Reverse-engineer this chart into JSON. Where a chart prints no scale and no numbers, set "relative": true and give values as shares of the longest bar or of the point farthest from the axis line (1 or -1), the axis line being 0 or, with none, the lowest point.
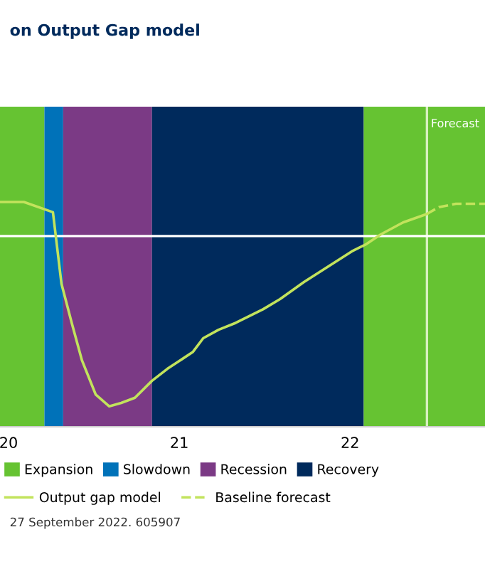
{
  "chart_data": {
    "type": "line",
    "title": "on Output Gap model",
    "relative": true,
    "xlim": [
      19.95,
      22.79
    ],
    "xticks": [
      20,
      21,
      22
    ],
    "series": [
      {
        "name": "Output gap model",
        "color": "#c2e35c",
        "line_style": "solid",
        "x": [
          19.95,
          20.09,
          20.26,
          20.31,
          20.37,
          20.43,
          20.51,
          20.59,
          20.66,
          20.74,
          20.84,
          20.93,
          21.08,
          21.14,
          21.23,
          21.33,
          21.41,
          21.49,
          21.59,
          21.73,
          21.87,
          22.01,
          22.09,
          22.18,
          22.31,
          22.45
        ],
        "values": [
          0.2,
          0.2,
          0.14,
          -0.28,
          -0.51,
          -0.73,
          -0.93,
          -1,
          -0.98,
          -0.95,
          -0.85,
          -0.78,
          -0.68,
          -0.6,
          -0.55,
          -0.51,
          -0.47,
          -0.43,
          -0.37,
          -0.27,
          -0.18,
          -0.09,
          -0.05,
          0.01,
          0.08,
          0.13
        ]
      },
      {
        "name": "Baseline forecast",
        "color": "#c2e35c",
        "line_style": "dashed",
        "x": [
          22.45,
          22.52,
          22.62,
          22.73,
          22.79
        ],
        "values": [
          0.13,
          0.17,
          0.19,
          0.19,
          0.19
        ]
      }
    ],
    "bands": [
      {
        "axis": "x",
        "from": 19.95,
        "to": 20.21,
        "label": "Expansion",
        "color": "#66c332"
      },
      {
        "axis": "x",
        "from": 20.21,
        "to": 20.32,
        "label": "Slowdown",
        "color": "#0072b9"
      },
      {
        "axis": "x",
        "from": 20.32,
        "to": 20.84,
        "label": "Recession",
        "color": "#7b3a85"
      },
      {
        "axis": "x",
        "from": 20.84,
        "to": 22.08,
        "label": "Recovery",
        "color": "#002a5c"
      },
      {
        "axis": "x",
        "from": 22.08,
        "to": 22.79,
        "color": "#66c332"
      }
    ],
    "ref_lines": [
      {
        "axis": "x",
        "value": 22.45,
        "label": "Forecast",
        "color": "#d8f0c0",
        "line_style": "solid"
      }
    ],
    "legend": "bottom",
    "grid": false,
    "annotations": [
      "27 September 2022. 605907"
    ]
  }
}
